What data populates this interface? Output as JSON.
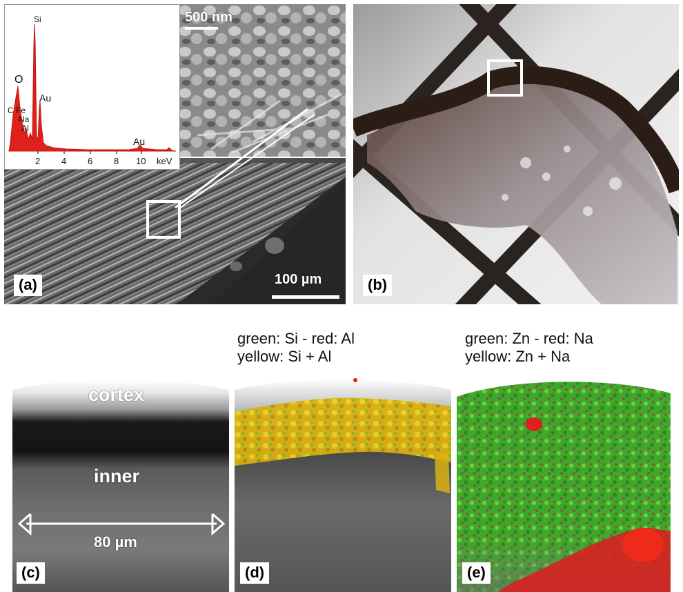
{
  "panel_a": {
    "label": "(a)",
    "scale_small": "500 nm",
    "scale_large": "100 µm",
    "spectrum": {
      "peaks": [
        "Si",
        "O",
        "C",
        "Fe",
        "Na",
        "Al",
        "Au",
        "Au"
      ],
      "x_ticks": [
        "2",
        "4",
        "6",
        "8",
        "10"
      ],
      "x_unit": "keV",
      "color": "#e0201a"
    }
  },
  "panel_b": {
    "label": "(b)"
  },
  "panel_c": {
    "label": "(c)",
    "cortex": "cortex",
    "inner": "inner",
    "scale": "80 µm"
  },
  "panel_d": {
    "label": "(d)",
    "caption_line1": "green: Si - red: Al",
    "caption_line2": "yellow: Si + Al"
  },
  "panel_e": {
    "label": "(e)",
    "caption_line1": "green: Zn - red: Na",
    "caption_line2": "yellow: Zn + Na"
  }
}
